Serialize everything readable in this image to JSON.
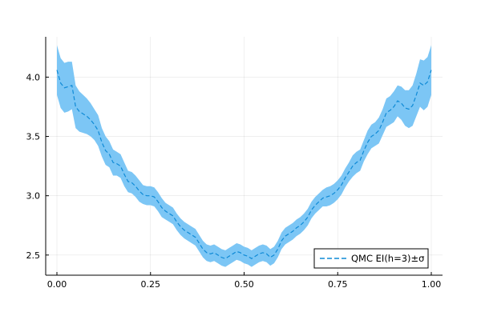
{
  "chart_data": {
    "type": "area",
    "title": "",
    "xlabel": "",
    "ylabel": "",
    "xlim": [
      -0.03,
      1.03
    ],
    "ylim": [
      2.33,
      4.34
    ],
    "xticks": [
      0.0,
      0.25,
      0.5,
      0.75,
      1.0
    ],
    "xtick_labels": [
      "0.00",
      "0.25",
      "0.50",
      "0.75",
      "1.00"
    ],
    "yticks": [
      2.5,
      3.0,
      3.5,
      4.0
    ],
    "ytick_labels": [
      "2.5",
      "3.0",
      "3.5",
      "4.0"
    ],
    "grid": true,
    "legend_position": "bottom-right",
    "series": [
      {
        "name": "QMC EI(h=3)±σ",
        "line_style": "dashed",
        "line_color": "#0f8ad6",
        "band_color": "#7cc6f5",
        "x": [
          0.0,
          0.01,
          0.02,
          0.03,
          0.04,
          0.05,
          0.06,
          0.07,
          0.08,
          0.09,
          0.1,
          0.11,
          0.12,
          0.13,
          0.14,
          0.15,
          0.16,
          0.17,
          0.18,
          0.19,
          0.2,
          0.21,
          0.22,
          0.23,
          0.24,
          0.25,
          0.26,
          0.27,
          0.28,
          0.29,
          0.3,
          0.31,
          0.32,
          0.33,
          0.34,
          0.35,
          0.36,
          0.37,
          0.38,
          0.39,
          0.4,
          0.41,
          0.42,
          0.43,
          0.44,
          0.45,
          0.46,
          0.47,
          0.48,
          0.49,
          0.5,
          0.51,
          0.52,
          0.53,
          0.54,
          0.55,
          0.56,
          0.57,
          0.58,
          0.59,
          0.6,
          0.61,
          0.62,
          0.63,
          0.64,
          0.65,
          0.66,
          0.67,
          0.68,
          0.69,
          0.7,
          0.71,
          0.72,
          0.73,
          0.74,
          0.75,
          0.76,
          0.77,
          0.78,
          0.79,
          0.8,
          0.81,
          0.82,
          0.83,
          0.84,
          0.85,
          0.86,
          0.87,
          0.88,
          0.89,
          0.9,
          0.91,
          0.92,
          0.93,
          0.94,
          0.95,
          0.96,
          0.97,
          0.98,
          0.99,
          1.0
        ],
        "y": [
          4.06,
          3.95,
          3.91,
          3.92,
          3.93,
          3.75,
          3.71,
          3.69,
          3.67,
          3.64,
          3.6,
          3.55,
          3.45,
          3.38,
          3.35,
          3.28,
          3.27,
          3.25,
          3.18,
          3.12,
          3.11,
          3.08,
          3.04,
          3.01,
          3.0,
          3.0,
          2.99,
          2.95,
          2.9,
          2.87,
          2.85,
          2.83,
          2.78,
          2.74,
          2.71,
          2.69,
          2.67,
          2.65,
          2.6,
          2.55,
          2.52,
          2.51,
          2.52,
          2.5,
          2.48,
          2.47,
          2.49,
          2.51,
          2.53,
          2.52,
          2.5,
          2.49,
          2.47,
          2.49,
          2.51,
          2.52,
          2.51,
          2.48,
          2.5,
          2.55,
          2.62,
          2.66,
          2.68,
          2.7,
          2.73,
          2.75,
          2.78,
          2.82,
          2.88,
          2.92,
          2.95,
          2.98,
          2.99,
          3.0,
          3.02,
          3.05,
          3.09,
          3.15,
          3.2,
          3.25,
          3.28,
          3.3,
          3.38,
          3.45,
          3.5,
          3.52,
          3.55,
          3.62,
          3.7,
          3.72,
          3.75,
          3.8,
          3.78,
          3.74,
          3.73,
          3.76,
          3.85,
          3.95,
          3.93,
          3.96,
          4.06
        ],
        "sigma": [
          0.21,
          0.21,
          0.21,
          0.21,
          0.2,
          0.18,
          0.17,
          0.16,
          0.15,
          0.14,
          0.13,
          0.13,
          0.12,
          0.12,
          0.11,
          0.11,
          0.1,
          0.1,
          0.1,
          0.09,
          0.09,
          0.09,
          0.09,
          0.08,
          0.08,
          0.08,
          0.08,
          0.08,
          0.08,
          0.07,
          0.07,
          0.07,
          0.07,
          0.07,
          0.07,
          0.07,
          0.07,
          0.07,
          0.07,
          0.07,
          0.07,
          0.07,
          0.07,
          0.07,
          0.07,
          0.07,
          0.07,
          0.07,
          0.07,
          0.07,
          0.07,
          0.07,
          0.07,
          0.07,
          0.07,
          0.07,
          0.07,
          0.07,
          0.07,
          0.07,
          0.07,
          0.07,
          0.07,
          0.07,
          0.07,
          0.07,
          0.07,
          0.07,
          0.07,
          0.07,
          0.07,
          0.07,
          0.08,
          0.08,
          0.08,
          0.08,
          0.08,
          0.08,
          0.08,
          0.09,
          0.09,
          0.09,
          0.09,
          0.1,
          0.1,
          0.1,
          0.11,
          0.11,
          0.12,
          0.12,
          0.13,
          0.13,
          0.14,
          0.15,
          0.16,
          0.17,
          0.18,
          0.2,
          0.21,
          0.21,
          0.21
        ]
      }
    ]
  }
}
